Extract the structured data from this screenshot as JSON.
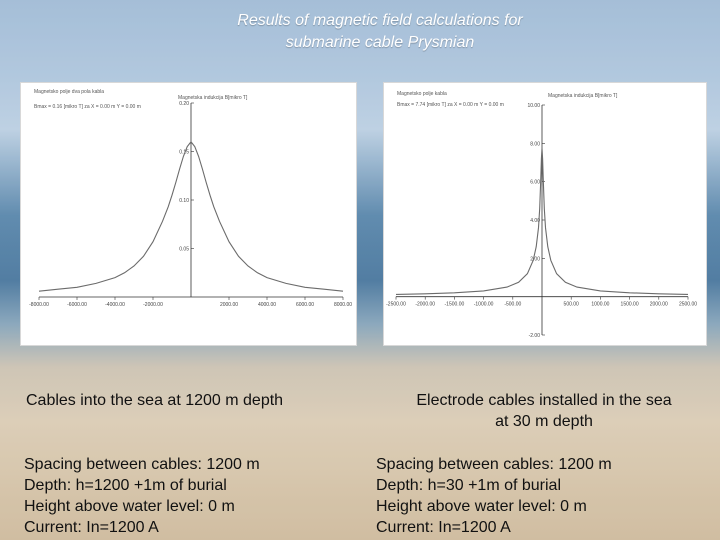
{
  "slide": {
    "title_line1": "Results of magnetic field calculations for",
    "title_line2": "submarine cable Prysmian"
  },
  "colors": {
    "curve": "#6b6b6b",
    "axis": "#333333"
  },
  "chart_data": [
    {
      "type": "line",
      "panel_header": "Magnetsko polje dva pola kabla",
      "panel_info": "Bmax = 0.16 [mikro T] za X = 0.00 m  Y = 0.00 m",
      "ylabel": "Magnetska indukcija B[mikro T]",
      "xlim": [
        -8000,
        8000
      ],
      "ylim": [
        0,
        0.2
      ],
      "x_ticks": [
        -8000,
        -6000,
        -4000,
        -2000,
        2000,
        4000,
        6000,
        8000
      ],
      "x_tick_labels": [
        "-8000.00",
        "-6000.00",
        "-4000.00",
        "-2000.00",
        "2000.00",
        "4000.00",
        "6000.00",
        "8000.00"
      ],
      "y_ticks": [
        0.05,
        0.1,
        0.15,
        0.2
      ],
      "y_tick_labels": [
        "0.05",
        "0.10",
        "0.15",
        "0.20"
      ],
      "series": [
        {
          "x": [
            -8000,
            -7000,
            -6000,
            -5000,
            -4000,
            -3500,
            -3000,
            -2500,
            -2000,
            -1500,
            -1200,
            -1000,
            -800,
            -600,
            -400,
            -200,
            0,
            200,
            400,
            600,
            800,
            1000,
            1200,
            1500,
            2000,
            2500,
            3000,
            3500,
            4000,
            5000,
            6000,
            7000,
            8000
          ],
          "y": [
            0.006,
            0.008,
            0.01,
            0.014,
            0.02,
            0.025,
            0.032,
            0.042,
            0.057,
            0.078,
            0.093,
            0.105,
            0.118,
            0.132,
            0.145,
            0.155,
            0.16,
            0.155,
            0.145,
            0.132,
            0.118,
            0.105,
            0.093,
            0.078,
            0.057,
            0.042,
            0.032,
            0.025,
            0.02,
            0.014,
            0.01,
            0.008,
            0.006
          ]
        }
      ]
    },
    {
      "type": "line",
      "panel_header": "Magnetsko polje kabla",
      "panel_info": "Bmax = 7.74 [mikro T] za X = 0.00 m  Y = 0.00 m",
      "ylabel": "Magnetska indukcija B[mikro T]",
      "xlim": [
        -2500,
        2500
      ],
      "ylim": [
        -2,
        10
      ],
      "x_ticks": [
        -2500,
        -2000,
        -1500,
        -1000,
        -500,
        500,
        1000,
        1500,
        2000,
        2500
      ],
      "x_tick_labels": [
        "-2500.00",
        "-2000.00",
        "-1500.00",
        "-1000.00",
        "-500.00",
        "500.00",
        "1000.00",
        "1500.00",
        "2000.00",
        "2500.00"
      ],
      "y_ticks": [
        -2,
        2,
        4,
        6,
        8,
        10
      ],
      "y_tick_labels": [
        "-2.00",
        "2.00",
        "4.00",
        "6.00",
        "8.00",
        "10.00"
      ],
      "series": [
        {
          "x": [
            -2500,
            -2000,
            -1500,
            -1000,
            -600,
            -400,
            -250,
            -150,
            -100,
            -60,
            -40,
            -20,
            -10,
            0,
            10,
            20,
            40,
            60,
            100,
            150,
            250,
            400,
            600,
            1000,
            1500,
            2000,
            2500
          ],
          "y": [
            0.12,
            0.15,
            0.2,
            0.3,
            0.5,
            0.75,
            1.2,
            1.9,
            2.6,
            3.6,
            4.6,
            6.2,
            7.2,
            7.74,
            7.2,
            6.2,
            4.6,
            3.6,
            2.6,
            1.9,
            1.2,
            0.75,
            0.5,
            0.3,
            0.2,
            0.15,
            0.12
          ]
        }
      ]
    }
  ],
  "left": {
    "caption": "Cables into the sea at 1200 m depth",
    "specs": [
      "Spacing between cables: 1200 m",
      "Depth: h=1200 +1m of burial",
      "Height above water level: 0 m",
      "Current: In=1200 A"
    ]
  },
  "right": {
    "caption_line1": "Electrode cables installed in the sea",
    "caption_line2": "at 30 m depth",
    "specs": [
      "Spacing between cables: 1200 m",
      "Depth: h=30 +1m of burial",
      "Height above water level: 0 m",
      "Current: In=1200 A"
    ]
  }
}
